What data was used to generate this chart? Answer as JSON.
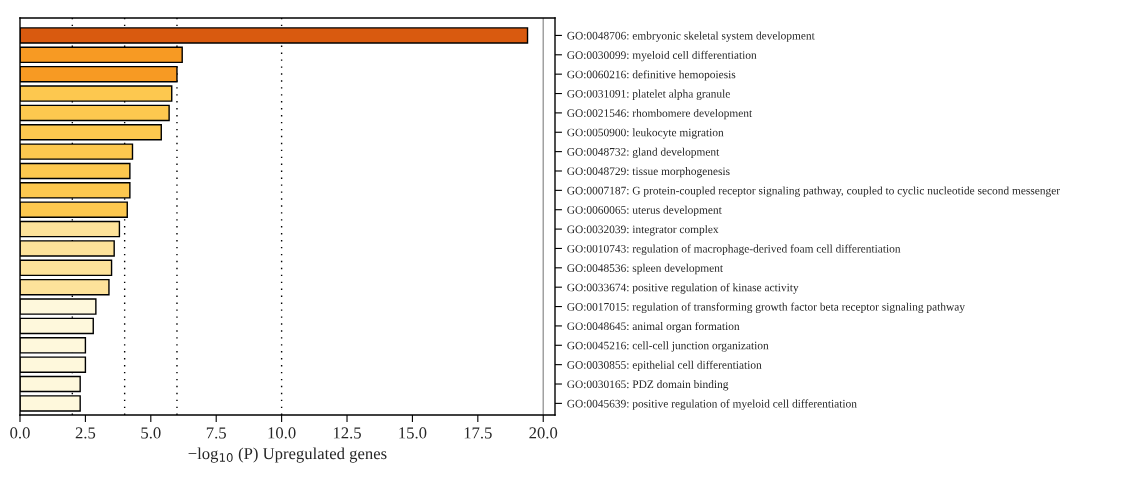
{
  "chart_data": {
    "type": "bar",
    "orientation": "horizontal",
    "xlabel": "−log$_{10}$ (P) Upregulated genes",
    "categories": [
      "GO:0048706: embryonic skeletal system development",
      "GO:0030099: myeloid cell differentiation",
      "GO:0060216: definitive hemopoiesis",
      "GO:0031091: platelet alpha granule",
      "GO:0021546: rhombomere development",
      "GO:0050900: leukocyte migration",
      "GO:0048732: gland development",
      "GO:0048729: tissue morphogenesis",
      "GO:0007187: G protein-coupled receptor signaling pathway, coupled to cyclic nucleotide second messenger",
      "GO:0060065: uterus development",
      "GO:0032039: integrator complex",
      "GO:0010743: regulation of macrophage-derived foam cell differentiation",
      "GO:0048536: spleen development",
      "GO:0033674: positive regulation of kinase activity",
      "GO:0017015: regulation of transforming growth factor beta receptor signaling pathway",
      "GO:0048645: animal organ formation",
      "GO:0045216: cell-cell junction organization",
      "GO:0030855: epithelial cell differentiation",
      "GO:0030165: PDZ domain binding",
      "GO:0045639: positive regulation of myeloid cell differentiation"
    ],
    "values": [
      19.4,
      6.2,
      6.0,
      5.8,
      5.7,
      5.4,
      4.3,
      4.2,
      4.2,
      4.1,
      3.8,
      3.6,
      3.5,
      3.4,
      2.9,
      2.8,
      2.5,
      2.5,
      2.3,
      2.3
    ],
    "colors": [
      "#d95a0f",
      "#f79a23",
      "#f79a23",
      "#fdc84f",
      "#fdc84f",
      "#fdc84f",
      "#fdc84f",
      "#fdc84f",
      "#fdc84f",
      "#fdc84f",
      "#fde29a",
      "#fde29a",
      "#fde29a",
      "#fde29a",
      "#fef8dc",
      "#fef8dc",
      "#fef8dc",
      "#fef8dc",
      "#fef8dc",
      "#fef8dc"
    ],
    "xlim": [
      0,
      20.45
    ],
    "xticks": [
      {
        "value": 0,
        "label": "0.0"
      },
      {
        "value": 2.5,
        "label": "2.5"
      },
      {
        "value": 5,
        "label": "5.0"
      },
      {
        "value": 7.5,
        "label": "7.5"
      },
      {
        "value": 10,
        "label": "10.0"
      },
      {
        "value": 12.5,
        "label": "12.5"
      },
      {
        "value": 15,
        "label": "15.0"
      },
      {
        "value": 17.5,
        "label": "17.5"
      },
      {
        "value": 20,
        "label": "20.0"
      }
    ],
    "ref_lines": [
      {
        "axis": "x",
        "value": 2,
        "color": "#000000",
        "line_style": "dotted"
      },
      {
        "axis": "x",
        "value": 4,
        "color": "#000000",
        "line_style": "dotted"
      },
      {
        "axis": "x",
        "value": 6,
        "color": "#000000",
        "line_style": "dotted"
      },
      {
        "axis": "x",
        "value": 10,
        "color": "#000000",
        "line_style": "dotted"
      },
      {
        "axis": "x",
        "value": 20,
        "color": "#999999",
        "line_style": "solid"
      }
    ],
    "grid": false,
    "legend": false
  }
}
